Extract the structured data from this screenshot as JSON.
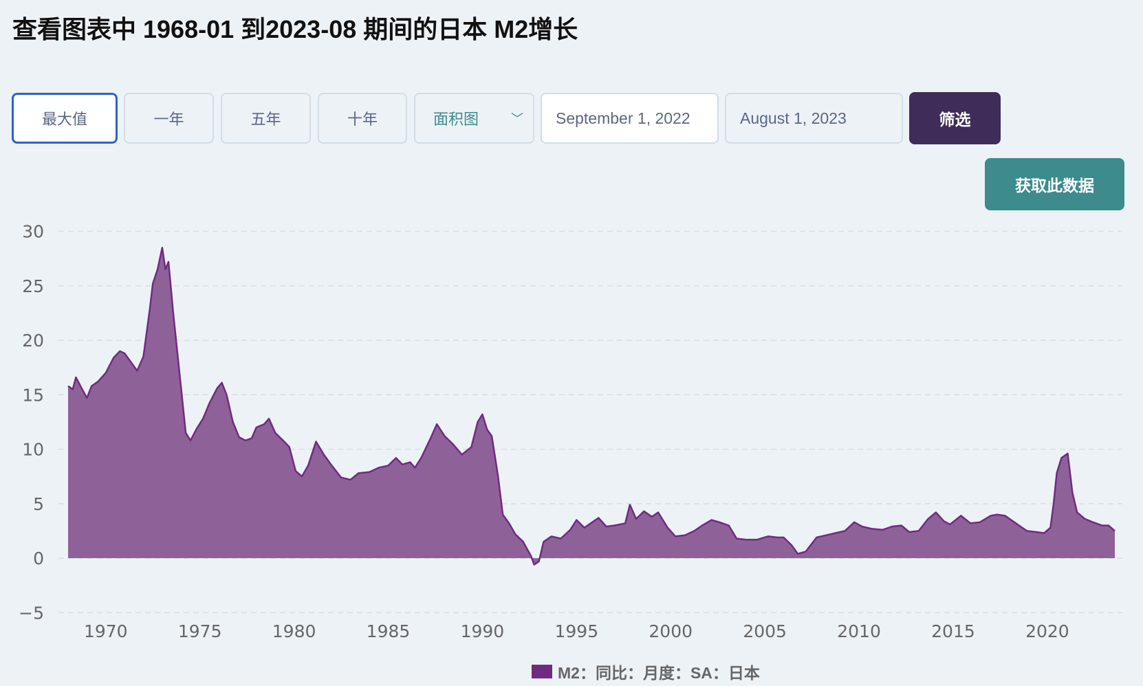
{
  "title": "查看图表中 1968-01 到2023-08 期间的日本 M2增长",
  "range_buttons": [
    "最大值",
    "一年",
    "五年",
    "十年"
  ],
  "active_range": "最大值",
  "chart_type_select": {
    "value": "面积图",
    "icon": "chevron-down-icon"
  },
  "date_from": "September 1, 2022",
  "date_to": "August 1, 2023",
  "filter_label": "筛选",
  "get_data_label": "获取此数据",
  "colors": {
    "series": "#6f2c7f",
    "fill": "#8e6299",
    "filter_button": "#3f2c58",
    "get_data_button": "#3d8b8c",
    "active_border": "#2b63cc"
  },
  "chart_data": {
    "type": "area",
    "ylim": [
      -5,
      30
    ],
    "yticks": [
      "30",
      "25",
      "20",
      "15",
      "10",
      "5",
      "0",
      "−5"
    ],
    "ytick_values": [
      30,
      25,
      20,
      15,
      10,
      5,
      0,
      -5
    ],
    "xticks": [
      "1970",
      "1975",
      "1980",
      "1985",
      "1990",
      "1995",
      "2000",
      "2005",
      "2010",
      "2015",
      "2020"
    ],
    "xlim": [
      "1968-01",
      "2023-08"
    ],
    "grid": true,
    "legend_position": "bottom",
    "series": [
      {
        "name": "M2：同比：月度：SA：日本",
        "points": [
          [
            "1968-01",
            15.8
          ],
          [
            "1968-04",
            15.5
          ],
          [
            "1968-06",
            16.6
          ],
          [
            "1968-10",
            15.5
          ],
          [
            "1969-01",
            14.7
          ],
          [
            "1969-04",
            15.8
          ],
          [
            "1969-08",
            16.2
          ],
          [
            "1970-01",
            17.0
          ],
          [
            "1970-06",
            18.4
          ],
          [
            "1970-10",
            19.0
          ],
          [
            "1971-01",
            18.8
          ],
          [
            "1971-06",
            17.8
          ],
          [
            "1971-09",
            17.2
          ],
          [
            "1972-01",
            18.5
          ],
          [
            "1972-05",
            22.8
          ],
          [
            "1972-07",
            25.2
          ],
          [
            "1972-10",
            26.5
          ],
          [
            "1973-01",
            28.5
          ],
          [
            "1973-03",
            26.5
          ],
          [
            "1973-05",
            27.2
          ],
          [
            "1973-08",
            22.5
          ],
          [
            "1973-12",
            17.0
          ],
          [
            "1974-04",
            11.5
          ],
          [
            "1974-07",
            10.8
          ],
          [
            "1974-11",
            11.9
          ],
          [
            "1975-03",
            12.8
          ],
          [
            "1975-07",
            14.2
          ],
          [
            "1975-12",
            15.6
          ],
          [
            "1976-03",
            16.1
          ],
          [
            "1976-06",
            15.0
          ],
          [
            "1976-10",
            12.5
          ],
          [
            "1977-02",
            11.1
          ],
          [
            "1977-06",
            10.8
          ],
          [
            "1977-10",
            11.0
          ],
          [
            "1978-01",
            12.0
          ],
          [
            "1978-06",
            12.3
          ],
          [
            "1978-09",
            12.8
          ],
          [
            "1979-01",
            11.5
          ],
          [
            "1979-06",
            10.8
          ],
          [
            "1979-10",
            10.2
          ],
          [
            "1980-02",
            8.0
          ],
          [
            "1980-06",
            7.5
          ],
          [
            "1980-10",
            8.5
          ],
          [
            "1981-03",
            10.7
          ],
          [
            "1981-08",
            9.5
          ],
          [
            "1982-01",
            8.5
          ],
          [
            "1982-07",
            7.4
          ],
          [
            "1983-01",
            7.2
          ],
          [
            "1983-06",
            7.8
          ],
          [
            "1984-01",
            7.9
          ],
          [
            "1984-07",
            8.3
          ],
          [
            "1985-01",
            8.5
          ],
          [
            "1985-06",
            9.2
          ],
          [
            "1985-10",
            8.6
          ],
          [
            "1986-03",
            8.8
          ],
          [
            "1986-06",
            8.3
          ],
          [
            "1986-10",
            9.2
          ],
          [
            "1987-04",
            11.0
          ],
          [
            "1987-08",
            12.3
          ],
          [
            "1988-01",
            11.2
          ],
          [
            "1988-06",
            10.5
          ],
          [
            "1988-12",
            9.5
          ],
          [
            "1989-06",
            10.2
          ],
          [
            "1989-10",
            12.5
          ],
          [
            "1990-01",
            13.2
          ],
          [
            "1990-04",
            11.8
          ],
          [
            "1990-07",
            11.2
          ],
          [
            "1990-11",
            7.5
          ],
          [
            "1991-02",
            4.0
          ],
          [
            "1991-06",
            3.2
          ],
          [
            "1991-10",
            2.2
          ],
          [
            "1992-03",
            1.5
          ],
          [
            "1992-08",
            0.2
          ],
          [
            "1992-10",
            -0.6
          ],
          [
            "1993-01",
            -0.3
          ],
          [
            "1993-04",
            1.5
          ],
          [
            "1993-09",
            2.0
          ],
          [
            "1994-03",
            1.8
          ],
          [
            "1994-09",
            2.6
          ],
          [
            "1995-01",
            3.5
          ],
          [
            "1995-06",
            2.8
          ],
          [
            "1995-10",
            3.2
          ],
          [
            "1996-03",
            3.7
          ],
          [
            "1996-08",
            2.9
          ],
          [
            "1997-01",
            3.0
          ],
          [
            "1997-08",
            3.2
          ],
          [
            "1997-11",
            4.9
          ],
          [
            "1998-03",
            3.6
          ],
          [
            "1998-08",
            4.3
          ],
          [
            "1999-01",
            3.8
          ],
          [
            "1999-05",
            4.2
          ],
          [
            "1999-11",
            2.8
          ],
          [
            "2000-04",
            2.0
          ],
          [
            "2000-10",
            2.1
          ],
          [
            "2001-04",
            2.5
          ],
          [
            "2001-09",
            3.0
          ],
          [
            "2002-03",
            3.5
          ],
          [
            "2002-08",
            3.3
          ],
          [
            "2003-02",
            3.0
          ],
          [
            "2003-07",
            1.8
          ],
          [
            "2004-01",
            1.7
          ],
          [
            "2004-08",
            1.7
          ],
          [
            "2005-03",
            2.0
          ],
          [
            "2005-09",
            1.9
          ],
          [
            "2006-01",
            1.9
          ],
          [
            "2006-06",
            1.2
          ],
          [
            "2006-10",
            0.4
          ],
          [
            "2007-03",
            0.6
          ],
          [
            "2007-10",
            1.9
          ],
          [
            "2008-04",
            2.1
          ],
          [
            "2008-10",
            2.3
          ],
          [
            "2009-04",
            2.5
          ],
          [
            "2009-10",
            3.3
          ],
          [
            "2010-03",
            2.9
          ],
          [
            "2010-09",
            2.7
          ],
          [
            "2011-04",
            2.6
          ],
          [
            "2011-10",
            2.9
          ],
          [
            "2012-04",
            3.0
          ],
          [
            "2012-09",
            2.4
          ],
          [
            "2013-03",
            2.5
          ],
          [
            "2013-09",
            3.6
          ],
          [
            "2014-02",
            4.2
          ],
          [
            "2014-07",
            3.4
          ],
          [
            "2014-11",
            3.1
          ],
          [
            "2015-06",
            3.9
          ],
          [
            "2015-12",
            3.2
          ],
          [
            "2016-06",
            3.3
          ],
          [
            "2017-01",
            3.9
          ],
          [
            "2017-05",
            4.0
          ],
          [
            "2017-10",
            3.9
          ],
          [
            "2018-05",
            3.2
          ],
          [
            "2018-12",
            2.5
          ],
          [
            "2019-06",
            2.4
          ],
          [
            "2019-11",
            2.3
          ],
          [
            "2020-03",
            2.8
          ],
          [
            "2020-05",
            5.0
          ],
          [
            "2020-07",
            7.8
          ],
          [
            "2020-10",
            9.2
          ],
          [
            "2021-02",
            9.6
          ],
          [
            "2021-05",
            6.0
          ],
          [
            "2021-08",
            4.2
          ],
          [
            "2022-01",
            3.6
          ],
          [
            "2022-06",
            3.3
          ],
          [
            "2022-12",
            3.0
          ],
          [
            "2023-04",
            3.0
          ],
          [
            "2023-08",
            2.5
          ]
        ]
      }
    ]
  }
}
